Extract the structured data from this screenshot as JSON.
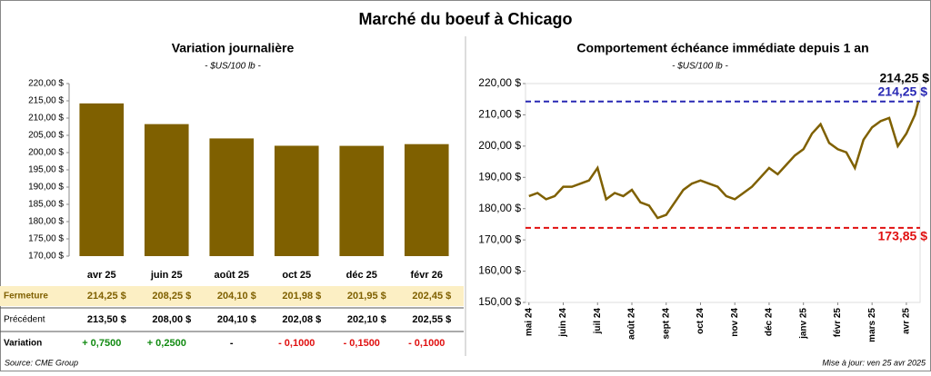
{
  "title": "Marché du boeuf à Chicago",
  "source": "Source: CME Group",
  "updated": "Mise à jour: ven 25 avr 2025",
  "chart_data": [
    {
      "type": "bar",
      "title": "Variation journalière",
      "subtitle": "- $US/100 lb -",
      "color": "#7f6000",
      "categories": [
        "avr 25",
        "juin 25",
        "août 25",
        "oct 25",
        "déc 25",
        "févr 26"
      ],
      "values": [
        214.25,
        208.25,
        204.1,
        201.98,
        201.95,
        202.45
      ],
      "value_labels": [
        "214,25  $",
        "208,25  $",
        "204,10  $",
        "201,98  $",
        "201,95  $",
        "202,45  $"
      ],
      "ylim": [
        170,
        220
      ],
      "yticks": [
        {
          "value": 170,
          "label": "170,00 $"
        },
        {
          "value": 175,
          "label": "175,00 $"
        },
        {
          "value": 180,
          "label": "180,00 $"
        },
        {
          "value": 185,
          "label": "185,00 $"
        },
        {
          "value": 190,
          "label": "190,00 $"
        },
        {
          "value": 195,
          "label": "195,00 $"
        },
        {
          "value": 200,
          "label": "200,00 $"
        },
        {
          "value": 205,
          "label": "205,00 $"
        },
        {
          "value": 210,
          "label": "210,00 $"
        },
        {
          "value": 215,
          "label": "215,00 $"
        },
        {
          "value": 220,
          "label": "220,00 $"
        }
      ]
    },
    {
      "type": "line",
      "title": "Comportement échéance immédiate depuis 1 an",
      "subtitle": "- $US/100 lb -",
      "color": "#7f6000",
      "x": [
        0,
        0.25,
        0.5,
        0.75,
        1,
        1.25,
        1.5,
        1.75,
        2,
        2.25,
        2.5,
        2.75,
        3,
        3.25,
        3.5,
        3.75,
        4,
        4.25,
        4.5,
        4.75,
        5,
        5.25,
        5.5,
        5.75,
        6,
        6.25,
        6.5,
        6.75,
        7,
        7.25,
        7.5,
        7.75,
        8,
        8.25,
        8.5,
        8.75,
        9,
        9.25,
        9.5,
        9.75,
        10,
        10.25,
        10.5,
        10.75,
        11,
        11.25,
        11.35
      ],
      "values": [
        184,
        185,
        183,
        184,
        187,
        187,
        188,
        189,
        193,
        183,
        185,
        184,
        186,
        182,
        181,
        177,
        178,
        182,
        186,
        188,
        189,
        188,
        187,
        184,
        183,
        185,
        187,
        190,
        193,
        191,
        194,
        197,
        199,
        204,
        207,
        201,
        199,
        198,
        193,
        202,
        206,
        208,
        209,
        200,
        204,
        210,
        214.25
      ],
      "last_label": "214,25 $",
      "ref_lines": [
        {
          "value": 214.25,
          "label": "214,25 $",
          "color": "#2828b4"
        },
        {
          "value": 173.85,
          "label": "173,85 $",
          "color": "#e01010"
        }
      ],
      "xlim": [
        -0.1,
        11.4
      ],
      "xticks": [
        {
          "value": 0,
          "label": "mai 24"
        },
        {
          "value": 1,
          "label": "juin 24"
        },
        {
          "value": 2,
          "label": "juil 24"
        },
        {
          "value": 3,
          "label": "août 24"
        },
        {
          "value": 4,
          "label": "sept 24"
        },
        {
          "value": 5,
          "label": "oct 24"
        },
        {
          "value": 6,
          "label": "nov 24"
        },
        {
          "value": 7,
          "label": "déc 24"
        },
        {
          "value": 8,
          "label": "janv 25"
        },
        {
          "value": 9,
          "label": "févr 25"
        },
        {
          "value": 10,
          "label": "mars 25"
        },
        {
          "value": 11,
          "label": "avr 25"
        }
      ],
      "ylim": [
        150,
        220
      ],
      "yticks": [
        {
          "value": 150,
          "label": "150,00 $"
        },
        {
          "value": 160,
          "label": "160,00 $"
        },
        {
          "value": 170,
          "label": "170,00 $"
        },
        {
          "value": 180,
          "label": "180,00 $"
        },
        {
          "value": 190,
          "label": "190,00 $"
        },
        {
          "value": 200,
          "label": "200,00 $"
        },
        {
          "value": 210,
          "label": "210,00 $"
        },
        {
          "value": 220,
          "label": "220,00 $"
        }
      ]
    }
  ],
  "table": {
    "positive_color": "#118a11",
    "negative_color": "#e01010",
    "rows": [
      {
        "label": "Fermeture"
      },
      {
        "label": "Précédent",
        "cells": [
          "213,50  $",
          "208,00  $",
          "204,10  $",
          "202,08  $",
          "202,10  $",
          "202,55  $"
        ]
      },
      {
        "label": "Variation",
        "cells": [
          "+ 0,7500",
          "+ 0,2500",
          "-",
          "- 0,1000",
          "- 0,1500",
          "- 0,1000"
        ]
      }
    ]
  }
}
